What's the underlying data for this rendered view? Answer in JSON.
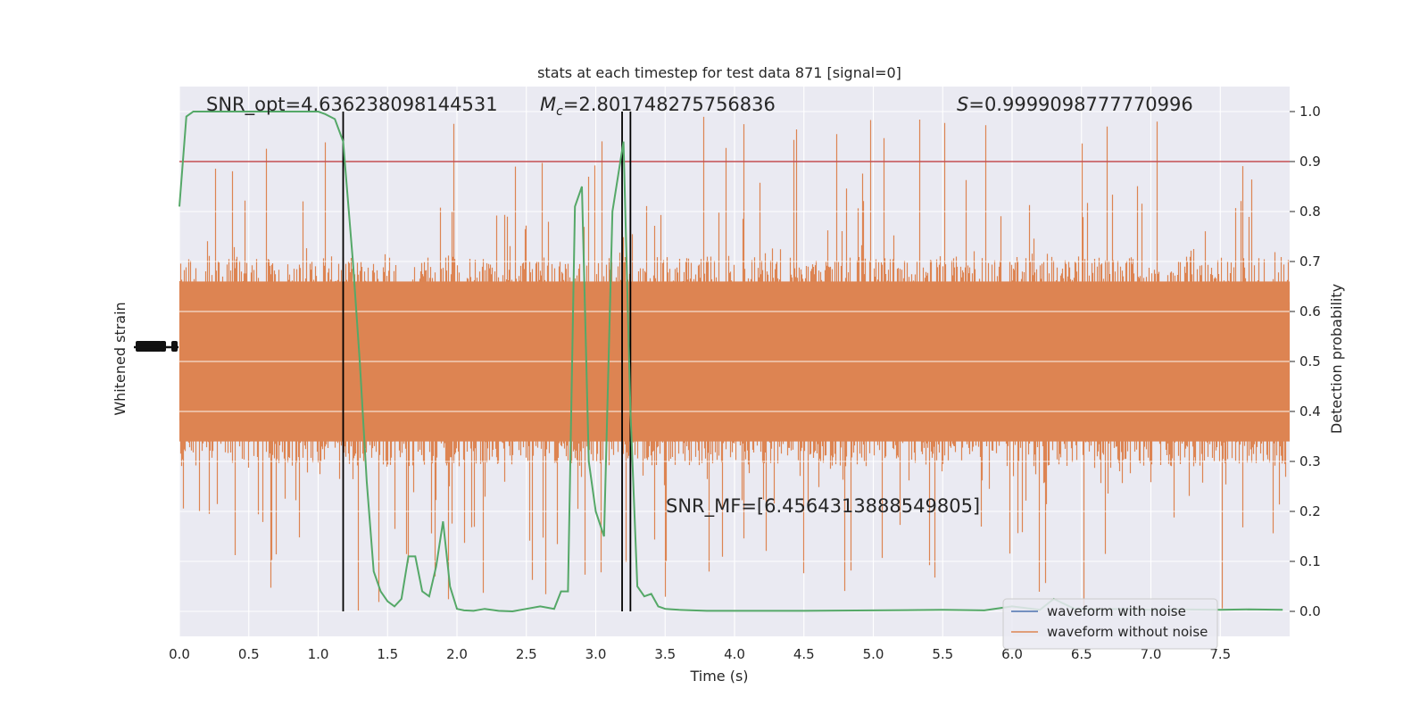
{
  "chart_data": {
    "type": "line",
    "title": "stats at each timestep for test data 871 [signal=0]",
    "xlabel": "Time (s)",
    "ylabel_left": "Whitened strain",
    "ylabel_right": "Detection probability",
    "xlim": [
      0.0,
      8.0
    ],
    "ylim_right": [
      -0.05,
      1.05
    ],
    "grid": true,
    "x_ticks": [
      "0.0",
      "0.5",
      "1.0",
      "1.5",
      "2.0",
      "2.5",
      "3.0",
      "3.5",
      "4.0",
      "4.5",
      "5.0",
      "5.5",
      "6.0",
      "6.5",
      "7.0",
      "7.5"
    ],
    "right_ticks": [
      "0.0",
      "0.1",
      "0.2",
      "0.3",
      "0.4",
      "0.5",
      "0.6",
      "0.7",
      "0.8",
      "0.9",
      "1.0"
    ],
    "annotations": {
      "snr_opt": "SNR_opt=4.636238098144531",
      "mc_symbol": "M",
      "mc_sub": "c",
      "mc_value": "=2.801748275756836",
      "s_symbol": "S",
      "s_value": "=0.9999098777770996",
      "snr_mf": "SNR_MF=[6.4564313888549805]"
    },
    "legend": {
      "position": "lower-right",
      "entries": [
        "waveform with noise",
        "waveform without noise"
      ]
    },
    "threshold": 0.9,
    "vlines": [
      1.18,
      3.19,
      3.25
    ],
    "strain_noise": {
      "seed": 871,
      "center": 0.5,
      "typical_half_range": 0.21,
      "max_half_range": 0.5
    },
    "detection_probability": {
      "x": [
        0.0,
        0.05,
        0.1,
        0.15,
        0.2,
        0.3,
        0.4,
        0.5,
        0.6,
        0.7,
        0.8,
        0.9,
        1.0,
        1.05,
        1.12,
        1.18,
        1.25,
        1.3,
        1.35,
        1.4,
        1.45,
        1.5,
        1.55,
        1.6,
        1.65,
        1.7,
        1.75,
        1.8,
        1.85,
        1.9,
        1.95,
        2.0,
        2.05,
        2.12,
        2.2,
        2.3,
        2.4,
        2.5,
        2.6,
        2.7,
        2.75,
        2.8,
        2.85,
        2.9,
        2.95,
        3.0,
        3.06,
        3.12,
        3.2,
        3.25,
        3.3,
        3.35,
        3.4,
        3.45,
        3.5,
        3.55,
        3.6,
        3.7,
        3.8,
        3.9,
        4.0,
        4.5,
        5.0,
        5.5,
        5.8,
        6.0,
        6.2,
        6.3,
        6.45,
        6.6,
        6.8,
        7.0,
        7.2,
        7.5,
        7.7,
        7.95
      ],
      "y": [
        0.81,
        0.99,
        1.0,
        1.0,
        1.0,
        1.0,
        1.0,
        1.0,
        1.0,
        1.0,
        1.0,
        1.0,
        1.0,
        0.995,
        0.985,
        0.94,
        0.7,
        0.5,
        0.26,
        0.08,
        0.04,
        0.02,
        0.01,
        0.025,
        0.11,
        0.11,
        0.04,
        0.03,
        0.09,
        0.18,
        0.05,
        0.005,
        0.002,
        0.001,
        0.005,
        0.001,
        0.0,
        0.005,
        0.01,
        0.005,
        0.04,
        0.04,
        0.81,
        0.85,
        0.3,
        0.2,
        0.15,
        0.8,
        0.94,
        0.4,
        0.05,
        0.03,
        0.035,
        0.01,
        0.005,
        0.004,
        0.003,
        0.002,
        0.001,
        0.001,
        0.001,
        0.001,
        0.002,
        0.003,
        0.002,
        0.01,
        0.003,
        0.025,
        0.005,
        0.004,
        0.005,
        0.003,
        0.004,
        0.003,
        0.004,
        0.003
      ]
    },
    "colors": {
      "background": "#eaeaf2",
      "grid": "#ffffff",
      "strain": "#dd8452",
      "probability": "#55a868",
      "threshold": "#c44e52",
      "vline": "#000000",
      "legend_noise": "#4c72b0",
      "legend_clean": "#dd8452"
    }
  }
}
